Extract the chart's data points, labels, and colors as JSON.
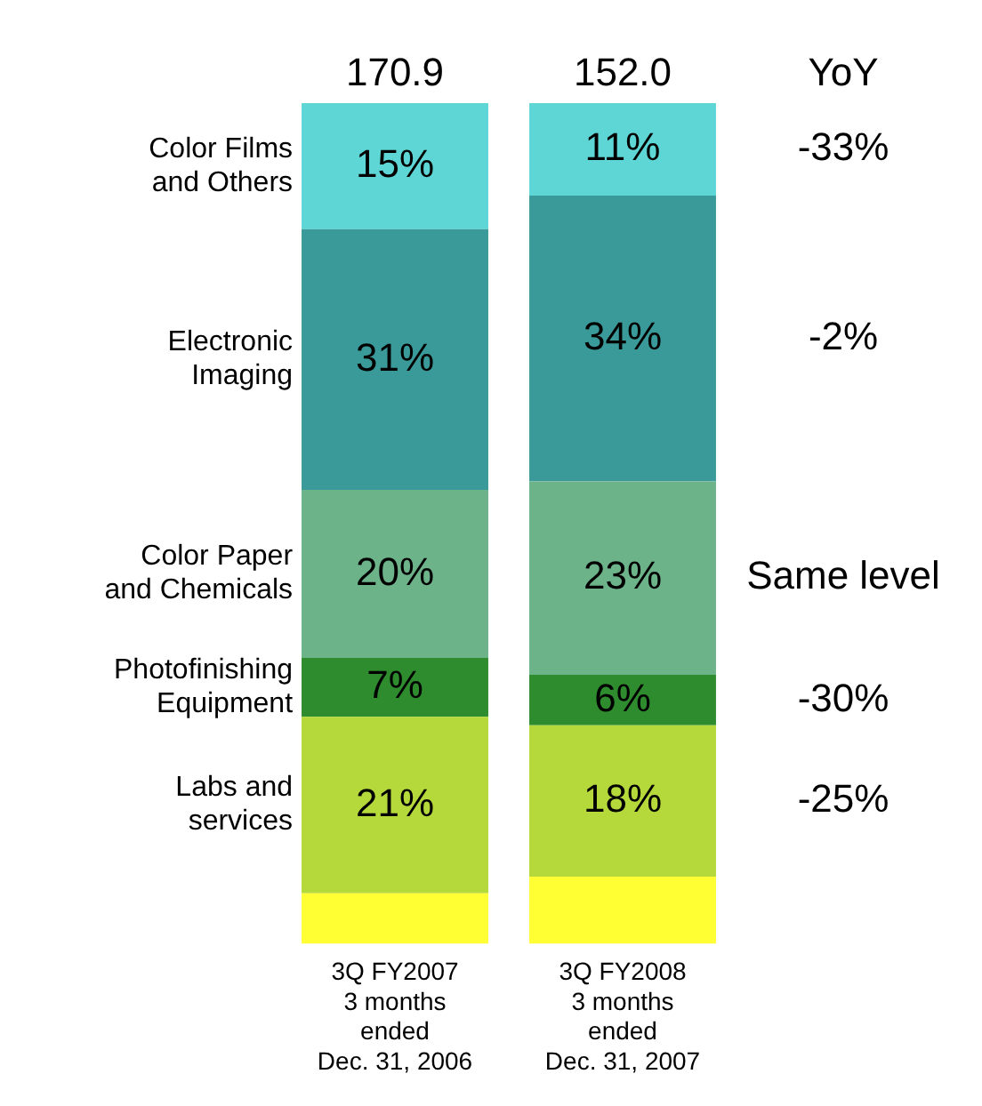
{
  "chart_data": {
    "type": "bar",
    "stacked": true,
    "categories": [
      "3Q FY2007\n3 months\nended\nDec. 31, 2006",
      "3Q FY2008\n3 months\nended\nDec. 31, 2007"
    ],
    "series": [
      {
        "color": "#ffff33",
        "values": [
          6,
          8
        ]
      },
      {
        "name": "Labs and\nservices",
        "color": "#b5d93a",
        "values": [
          21,
          18
        ],
        "value_labels": [
          "21%",
          "18%"
        ]
      },
      {
        "name": "Photofinishing\nEquipment",
        "color": "#2e8b2e",
        "values": [
          7,
          6
        ],
        "value_labels": [
          "7%",
          "6%"
        ]
      },
      {
        "name": "Color Paper\nand Chemicals",
        "color": "#6db38a",
        "values": [
          20,
          23
        ],
        "value_labels": [
          "20%",
          "23%"
        ]
      },
      {
        "name": "Electronic\nImaging",
        "color": "#3a9a9a",
        "values": [
          31,
          34
        ],
        "value_labels": [
          "31%",
          "34%"
        ]
      },
      {
        "name": "Color Films\nand Others",
        "color": "#5ed6d6",
        "values": [
          15,
          11
        ],
        "value_labels": [
          "15%",
          "11%"
        ]
      }
    ],
    "annotations": [
      "YoY",
      "-25%",
      "-30%",
      "Same level",
      "-2%",
      "-33%",
      {
        "text": "170.9",
        "x": "3Q FY2007\n3 months\nended\nDec. 31, 2006",
        "y": 100
      },
      {
        "text": "152.0",
        "x": "3Q FY2008\n3 months\nended\nDec. 31, 2007",
        "y": 100
      }
    ],
    "legend": false,
    "grid": false
  }
}
